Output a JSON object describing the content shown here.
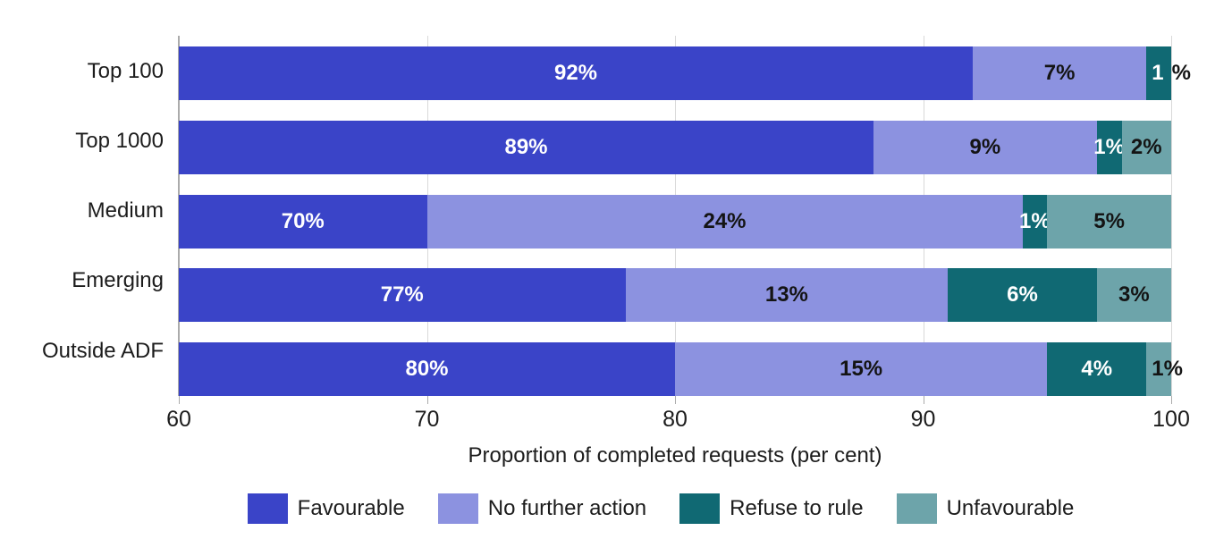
{
  "chart_data": {
    "type": "bar",
    "variant": "horizontal-stacked",
    "title": "",
    "xlabel": "Proportion of completed requests (per cent)",
    "ylabel": "",
    "xlim": [
      60,
      100
    ],
    "xticks": [
      60,
      70,
      80,
      90,
      100
    ],
    "grid": "vertical",
    "legend_position": "bottom",
    "categories": [
      "Top 100",
      "Top 1000",
      "Medium",
      "Emerging",
      "Outside ADF"
    ],
    "series": [
      {
        "name": "Favourable",
        "color": "#3a44c8",
        "values": [
          92,
          89,
          70,
          77,
          80
        ]
      },
      {
        "name": "No further action",
        "color": "#8c92e0",
        "values": [
          7,
          9,
          24,
          13,
          15
        ]
      },
      {
        "name": "Refuse to rule",
        "color": "#106973",
        "values": [
          1,
          1,
          1,
          6,
          4
        ]
      },
      {
        "name": "Unfavourable",
        "color": "#6da4aa",
        "values": [
          0,
          2,
          5,
          3,
          1
        ]
      }
    ],
    "label_colors": {
      "light": "#ffffff",
      "dark": "#141414"
    },
    "axis_color": "#ababab",
    "grid_color": "#d9d9d9",
    "rows": [
      {
        "category": "Top 100",
        "segments": [
          {
            "si": 0,
            "v": 92,
            "label": "92%",
            "style": "light"
          },
          {
            "si": 1,
            "v": 7,
            "label": "7%",
            "style": "dark"
          },
          {
            "si": 2,
            "v": 1,
            "label": "1%",
            "style": "split",
            "overflow": "right",
            "parts": [
              {
                "text": "1",
                "style": "light"
              },
              {
                "text": "%",
                "style": "dark"
              }
            ]
          }
        ]
      },
      {
        "category": "Top 1000",
        "segments": [
          {
            "si": 0,
            "v": 89,
            "label": "89%",
            "style": "light"
          },
          {
            "si": 1,
            "v": 9,
            "label": "9%",
            "style": "dark"
          },
          {
            "si": 2,
            "v": 1,
            "label": "1%",
            "style": "light"
          },
          {
            "si": 3,
            "v": 2,
            "label": "2%",
            "style": "dark"
          }
        ]
      },
      {
        "category": "Medium",
        "segments": [
          {
            "si": 0,
            "v": 70,
            "label": "70%",
            "style": "light"
          },
          {
            "si": 1,
            "v": 24,
            "label": "24%",
            "style": "dark"
          },
          {
            "si": 2,
            "v": 1,
            "label": "1%",
            "style": "light"
          },
          {
            "si": 3,
            "v": 5,
            "label": "5%",
            "style": "dark"
          }
        ]
      },
      {
        "category": "Emerging",
        "segments": [
          {
            "si": 0,
            "v": 77,
            "label": "77%",
            "style": "light"
          },
          {
            "si": 1,
            "v": 13,
            "label": "13%",
            "style": "dark"
          },
          {
            "si": 2,
            "v": 6,
            "label": "6%",
            "style": "light"
          },
          {
            "si": 3,
            "v": 3,
            "label": "3%",
            "style": "dark"
          }
        ]
      },
      {
        "category": "Outside ADF",
        "segments": [
          {
            "si": 0,
            "v": 80,
            "label": "80%",
            "style": "light"
          },
          {
            "si": 1,
            "v": 15,
            "label": "15%",
            "style": "dark"
          },
          {
            "si": 2,
            "v": 4,
            "label": "4%",
            "style": "light"
          },
          {
            "si": 3,
            "v": 1,
            "label": "1%",
            "style": "dark",
            "overflow": "right"
          }
        ]
      }
    ]
  }
}
